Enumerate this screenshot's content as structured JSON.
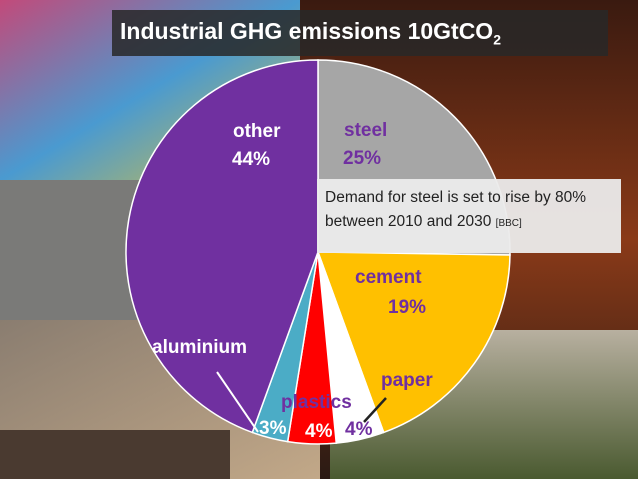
{
  "title": {
    "main": "Industrial GHG emissions 10GtCO",
    "sub": "2"
  },
  "annotation": {
    "text": "Demand for steel is set to rise by 80% between 2010 and 2030",
    "source": "[BBC]"
  },
  "chart_data": {
    "type": "pie",
    "title": "Industrial GHG emissions 10GtCO2",
    "slices": [
      {
        "label": "steel",
        "value": 25,
        "display": "25%",
        "color": "#a6a6a6"
      },
      {
        "label": "cement",
        "value": 19,
        "display": "19%",
        "color": "#ffc000"
      },
      {
        "label": "paper",
        "value": 4,
        "display": "4%",
        "color": "#ffffff"
      },
      {
        "label": "plastics",
        "value": 4,
        "display": "4%",
        "color": "#ff0000"
      },
      {
        "label": "aluminium",
        "value": 3,
        "display": "3%",
        "color": "#4bacc6"
      },
      {
        "label": "other",
        "value": 44,
        "display": "44%",
        "color": "#7030a0"
      }
    ]
  }
}
